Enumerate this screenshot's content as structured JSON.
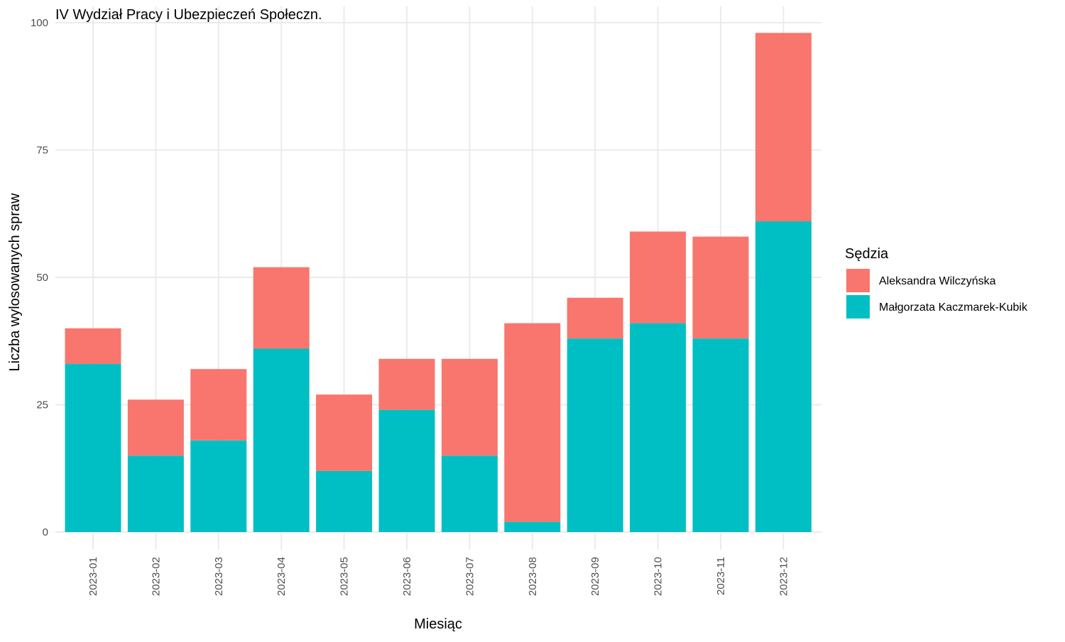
{
  "chart_data": {
    "type": "bar",
    "stacked": true,
    "title": "IV Wydział Pracy i Ubezpieczeń Społeczn.",
    "xlabel": "Miesiąc",
    "ylabel": "Liczba wylosowanych spraw",
    "categories": [
      "2023-01",
      "2023-02",
      "2023-03",
      "2023-04",
      "2023-05",
      "2023-06",
      "2023-07",
      "2023-08",
      "2023-09",
      "2023-10",
      "2023-11",
      "2023-12"
    ],
    "series": [
      {
        "name": "Małgorzata Kaczmarek-Kubik",
        "color": "#00BFC4",
        "values": [
          33,
          15,
          18,
          36,
          12,
          24,
          15,
          2,
          38,
          41,
          38,
          61
        ]
      },
      {
        "name": "Aleksandra Wilczyńska",
        "color": "#F8766D",
        "values": [
          7,
          11,
          14,
          16,
          15,
          10,
          19,
          39,
          8,
          18,
          20,
          37
        ]
      }
    ],
    "ylim": [
      0,
      100
    ],
    "yticks": [
      0,
      25,
      50,
      75,
      100
    ],
    "grid": true,
    "legend": {
      "title": "Sędzia",
      "placement": "right",
      "entries": [
        {
          "label": "Aleksandra Wilczyńska",
          "color": "#F8766D"
        },
        {
          "label": "Małgorzata Kaczmarek-Kubik",
          "color": "#00BFC4"
        }
      ]
    }
  }
}
